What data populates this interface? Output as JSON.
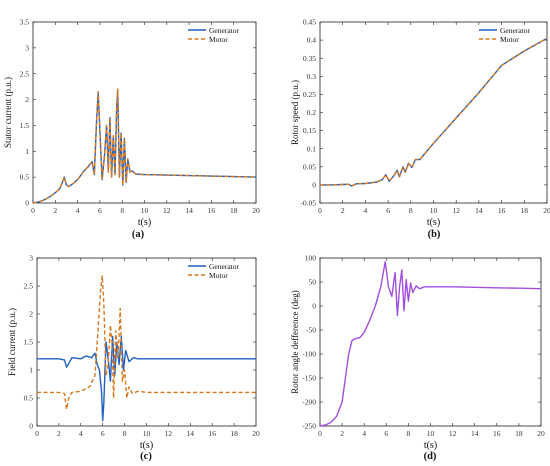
{
  "colors": {
    "generator": "#1f5fbf",
    "motor": "#d9781e",
    "angle": "#a24fe0",
    "axis": "#222222",
    "bg": "#ffffff"
  },
  "chart_data": [
    {
      "id": "a",
      "panel_label": "(a)",
      "type": "line",
      "xlabel": "t(s)",
      "ylabel": "Stator current (p.u.)",
      "xlim": [
        0,
        20
      ],
      "ylim": [
        0,
        3.5
      ],
      "xticks": [
        0,
        2,
        4,
        6,
        8,
        10,
        12,
        14,
        16,
        18,
        20
      ],
      "yticks": [
        0,
        0.5,
        1,
        1.5,
        2,
        2.5,
        3,
        3.5
      ],
      "legend": "top-right",
      "series": [
        {
          "name": "Generator",
          "style": "solid",
          "color": "#1f5fbf",
          "points": [
            [
              0,
              0
            ],
            [
              0.5,
              0.02
            ],
            [
              1,
              0.06
            ],
            [
              1.5,
              0.12
            ],
            [
              2,
              0.2
            ],
            [
              2.4,
              0.28
            ],
            [
              2.6,
              0.38
            ],
            [
              2.8,
              0.5
            ],
            [
              3.0,
              0.35
            ],
            [
              3.2,
              0.32
            ],
            [
              3.5,
              0.36
            ],
            [
              4,
              0.45
            ],
            [
              4.5,
              0.6
            ],
            [
              5,
              0.72
            ],
            [
              5.3,
              0.8
            ],
            [
              5.5,
              0.55
            ],
            [
              5.7,
              1.6
            ],
            [
              5.85,
              2.15
            ],
            [
              6.0,
              1.4
            ],
            [
              6.2,
              0.45
            ],
            [
              6.4,
              0.9
            ],
            [
              6.6,
              1.5
            ],
            [
              6.75,
              0.6
            ],
            [
              6.9,
              1.65
            ],
            [
              7.05,
              0.5
            ],
            [
              7.2,
              1.3
            ],
            [
              7.35,
              0.55
            ],
            [
              7.5,
              1.8
            ],
            [
              7.6,
              2.2
            ],
            [
              7.75,
              0.5
            ],
            [
              7.9,
              1.35
            ],
            [
              8.05,
              0.35
            ],
            [
              8.2,
              1.25
            ],
            [
              8.35,
              0.4
            ],
            [
              8.5,
              0.85
            ],
            [
              8.7,
              0.6
            ],
            [
              8.9,
              0.62
            ],
            [
              9.2,
              0.56
            ],
            [
              10,
              0.55
            ],
            [
              12,
              0.54
            ],
            [
              14,
              0.53
            ],
            [
              16,
              0.52
            ],
            [
              18,
              0.51
            ],
            [
              20,
              0.5
            ]
          ]
        },
        {
          "name": "Motor",
          "style": "dashed",
          "color": "#d9781e",
          "points": [
            [
              0,
              0
            ],
            [
              0.5,
              0.02
            ],
            [
              1,
              0.06
            ],
            [
              1.5,
              0.12
            ],
            [
              2,
              0.2
            ],
            [
              2.4,
              0.28
            ],
            [
              2.6,
              0.38
            ],
            [
              2.8,
              0.5
            ],
            [
              3.0,
              0.35
            ],
            [
              3.2,
              0.32
            ],
            [
              3.5,
              0.36
            ],
            [
              4,
              0.45
            ],
            [
              4.5,
              0.6
            ],
            [
              5,
              0.72
            ],
            [
              5.3,
              0.8
            ],
            [
              5.5,
              0.55
            ],
            [
              5.7,
              1.6
            ],
            [
              5.85,
              2.15
            ],
            [
              6.0,
              1.4
            ],
            [
              6.2,
              0.45
            ],
            [
              6.4,
              0.9
            ],
            [
              6.6,
              1.5
            ],
            [
              6.75,
              0.6
            ],
            [
              6.9,
              1.65
            ],
            [
              7.05,
              0.5
            ],
            [
              7.2,
              1.3
            ],
            [
              7.35,
              0.55
            ],
            [
              7.5,
              1.8
            ],
            [
              7.6,
              2.2
            ],
            [
              7.75,
              0.5
            ],
            [
              7.9,
              1.35
            ],
            [
              8.05,
              0.35
            ],
            [
              8.2,
              1.25
            ],
            [
              8.35,
              0.4
            ],
            [
              8.5,
              0.85
            ],
            [
              8.7,
              0.6
            ],
            [
              8.9,
              0.62
            ],
            [
              9.2,
              0.56
            ],
            [
              10,
              0.55
            ],
            [
              12,
              0.54
            ],
            [
              14,
              0.53
            ],
            [
              16,
              0.52
            ],
            [
              18,
              0.51
            ],
            [
              20,
              0.5
            ]
          ]
        }
      ]
    },
    {
      "id": "b",
      "panel_label": "(b)",
      "type": "line",
      "xlabel": "t(s)",
      "ylabel": "Rotor speed (p.u.)",
      "xlim": [
        0,
        20
      ],
      "ylim": [
        -0.05,
        0.45
      ],
      "xticks": [
        0,
        2,
        4,
        6,
        8,
        10,
        12,
        14,
        16,
        18,
        20
      ],
      "yticks": [
        -0.05,
        0,
        0.05,
        0.1,
        0.15,
        0.2,
        0.25,
        0.3,
        0.35,
        0.4,
        0.45
      ],
      "legend": "top-right",
      "series": [
        {
          "name": "Generator",
          "style": "solid",
          "color": "#1f5fbf",
          "points": [
            [
              0,
              0
            ],
            [
              1,
              0
            ],
            [
              2,
              0.001
            ],
            [
              2.5,
              0.002
            ],
            [
              2.8,
              -0.003
            ],
            [
              3.2,
              0.003
            ],
            [
              4,
              0.004
            ],
            [
              5,
              0.008
            ],
            [
              5.5,
              0.015
            ],
            [
              5.8,
              0.028
            ],
            [
              6.1,
              0.01
            ],
            [
              6.5,
              0.025
            ],
            [
              6.8,
              0.04
            ],
            [
              7.0,
              0.022
            ],
            [
              7.3,
              0.05
            ],
            [
              7.5,
              0.035
            ],
            [
              7.8,
              0.06
            ],
            [
              8.1,
              0.048
            ],
            [
              8.4,
              0.07
            ],
            [
              8.8,
              0.07
            ],
            [
              9.2,
              0.085
            ],
            [
              10,
              0.115
            ],
            [
              12,
              0.185
            ],
            [
              14,
              0.255
            ],
            [
              16,
              0.33
            ],
            [
              18,
              0.37
            ],
            [
              20,
              0.405
            ]
          ]
        },
        {
          "name": "Motor",
          "style": "dashed",
          "color": "#d9781e",
          "points": [
            [
              0,
              0
            ],
            [
              1,
              0
            ],
            [
              2,
              0.001
            ],
            [
              2.5,
              0.002
            ],
            [
              2.8,
              -0.003
            ],
            [
              3.2,
              0.003
            ],
            [
              4,
              0.004
            ],
            [
              5,
              0.008
            ],
            [
              5.5,
              0.015
            ],
            [
              5.8,
              0.028
            ],
            [
              6.1,
              0.01
            ],
            [
              6.5,
              0.025
            ],
            [
              6.8,
              0.04
            ],
            [
              7.0,
              0.022
            ],
            [
              7.3,
              0.05
            ],
            [
              7.5,
              0.035
            ],
            [
              7.8,
              0.06
            ],
            [
              8.1,
              0.048
            ],
            [
              8.4,
              0.07
            ],
            [
              8.8,
              0.07
            ],
            [
              9.2,
              0.085
            ],
            [
              10,
              0.115
            ],
            [
              12,
              0.185
            ],
            [
              14,
              0.255
            ],
            [
              16,
              0.33
            ],
            [
              18,
              0.37
            ],
            [
              20,
              0.405
            ]
          ]
        }
      ]
    },
    {
      "id": "c",
      "panel_label": "(c)",
      "type": "line",
      "xlabel": "t(s)",
      "ylabel": "Field current (p.u.)",
      "xlim": [
        0,
        20
      ],
      "ylim": [
        0,
        3
      ],
      "xticks": [
        0,
        2,
        4,
        6,
        8,
        10,
        12,
        14,
        16,
        18,
        20
      ],
      "yticks": [
        0,
        0.5,
        1,
        1.5,
        2,
        2.5,
        3
      ],
      "legend": "top-right",
      "series": [
        {
          "name": "Generator",
          "style": "solid",
          "color": "#1f5fbf",
          "points": [
            [
              0,
              1.2
            ],
            [
              1,
              1.2
            ],
            [
              2,
              1.2
            ],
            [
              2.5,
              1.18
            ],
            [
              2.7,
              1.05
            ],
            [
              2.9,
              1.12
            ],
            [
              3.2,
              1.22
            ],
            [
              4,
              1.2
            ],
            [
              4.5,
              1.25
            ],
            [
              5,
              1.22
            ],
            [
              5.3,
              1.3
            ],
            [
              5.5,
              1.1
            ],
            [
              5.7,
              1.0
            ],
            [
              5.9,
              0.6
            ],
            [
              6.0,
              0.1
            ],
            [
              6.1,
              0.4
            ],
            [
              6.3,
              1.5
            ],
            [
              6.5,
              1.2
            ],
            [
              6.7,
              0.8
            ],
            [
              6.9,
              1.6
            ],
            [
              7.1,
              0.9
            ],
            [
              7.3,
              1.5
            ],
            [
              7.5,
              1.1
            ],
            [
              7.7,
              1.6
            ],
            [
              7.9,
              1.0
            ],
            [
              8.1,
              1.35
            ],
            [
              8.4,
              1.15
            ],
            [
              8.8,
              1.22
            ],
            [
              9.2,
              1.2
            ],
            [
              10,
              1.2
            ],
            [
              20,
              1.2
            ]
          ]
        },
        {
          "name": "Motor",
          "style": "dashed",
          "color": "#d9781e",
          "points": [
            [
              0,
              0.6
            ],
            [
              1,
              0.6
            ],
            [
              2,
              0.6
            ],
            [
              2.5,
              0.58
            ],
            [
              2.7,
              0.3
            ],
            [
              2.9,
              0.5
            ],
            [
              3.2,
              0.6
            ],
            [
              4,
              0.62
            ],
            [
              4.8,
              0.7
            ],
            [
              5.3,
              0.9
            ],
            [
              5.6,
              1.8
            ],
            [
              5.8,
              2.4
            ],
            [
              5.95,
              2.68
            ],
            [
              6.1,
              2.2
            ],
            [
              6.3,
              0.9
            ],
            [
              6.5,
              1.1
            ],
            [
              6.7,
              1.8
            ],
            [
              6.85,
              1.5
            ],
            [
              7.0,
              0.5
            ],
            [
              7.2,
              1.7
            ],
            [
              7.4,
              1.2
            ],
            [
              7.6,
              2.1
            ],
            [
              7.8,
              0.8
            ],
            [
              8.0,
              1.0
            ],
            [
              8.2,
              0.5
            ],
            [
              8.4,
              0.7
            ],
            [
              8.7,
              0.58
            ],
            [
              9.2,
              0.62
            ],
            [
              10,
              0.6
            ],
            [
              20,
              0.6
            ]
          ]
        }
      ]
    },
    {
      "id": "d",
      "panel_label": "(d)",
      "type": "line",
      "xlabel": "t(s)",
      "ylabel": "Rotor angle defference (deg)",
      "xlim": [
        0,
        20
      ],
      "ylim": [
        -250,
        100
      ],
      "xticks": [
        0,
        2,
        4,
        6,
        8,
        10,
        12,
        14,
        16,
        18,
        20
      ],
      "yticks": [
        -250,
        -200,
        -150,
        -100,
        -50,
        0,
        50,
        100
      ],
      "legend": "none",
      "series": [
        {
          "style": "solid",
          "color": "#a24fe0",
          "points": [
            [
              0,
              -250
            ],
            [
              0.5,
              -248
            ],
            [
              1,
              -242
            ],
            [
              1.5,
              -230
            ],
            [
              2,
              -200
            ],
            [
              2.3,
              -150
            ],
            [
              2.6,
              -100
            ],
            [
              2.9,
              -72
            ],
            [
              3.2,
              -68
            ],
            [
              3.6,
              -66
            ],
            [
              4,
              -55
            ],
            [
              4.5,
              -30
            ],
            [
              5,
              0
            ],
            [
              5.5,
              40
            ],
            [
              5.9,
              92
            ],
            [
              6.2,
              40
            ],
            [
              6.5,
              20
            ],
            [
              6.8,
              70
            ],
            [
              7.0,
              -20
            ],
            [
              7.2,
              40
            ],
            [
              7.4,
              75
            ],
            [
              7.6,
              -10
            ],
            [
              7.8,
              55
            ],
            [
              8.0,
              10
            ],
            [
              8.2,
              48
            ],
            [
              8.4,
              28
            ],
            [
              8.7,
              42
            ],
            [
              9.0,
              36
            ],
            [
              9.5,
              40
            ],
            [
              10,
              40
            ],
            [
              12,
              40
            ],
            [
              14,
              39
            ],
            [
              16,
              38
            ],
            [
              18,
              37
            ],
            [
              20,
              36
            ]
          ]
        }
      ]
    }
  ]
}
